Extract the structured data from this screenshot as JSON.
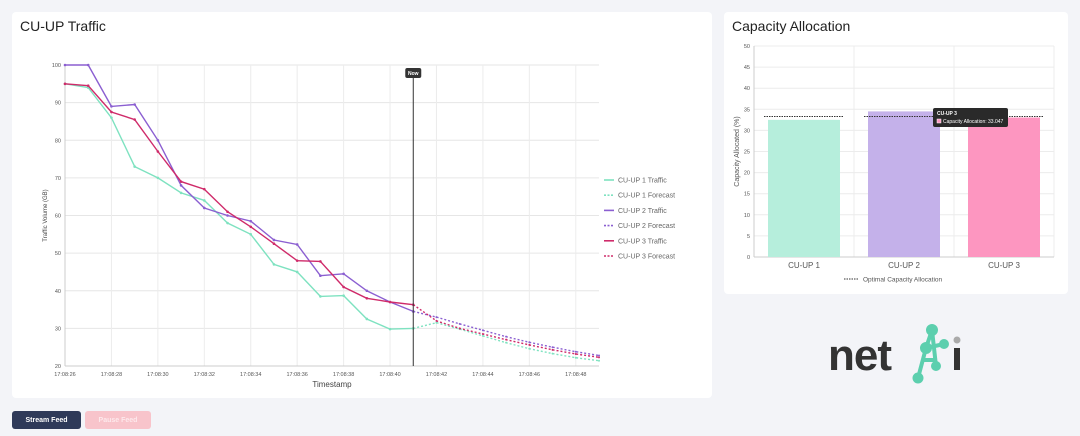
{
  "traffic": {
    "title": "CU-UP Traffic",
    "chart_data": {
      "type": "line",
      "ylabel": "Traffic Volume (GB)",
      "xlabel": "Timestamp",
      "ylim": [
        20,
        100
      ],
      "yticks": [
        20,
        30,
        40,
        50,
        60,
        70,
        80,
        90,
        100
      ],
      "x_start": "17:08:26",
      "xticks": [
        "17:08:26",
        "17:08:28",
        "17:08:30",
        "17:08:32",
        "17:08:34",
        "17:08:36",
        "17:08:38",
        "17:08:40",
        "17:08:42",
        "17:08:44",
        "17:08:46",
        "17:08:48"
      ],
      "now_marker": {
        "label": "Now",
        "x": 41
      },
      "legend_position": "right",
      "series": [
        {
          "name": "CU-UP 1 Traffic",
          "color": "#7ee2c0",
          "dashed": false,
          "points": [
            [
              26,
              95
            ],
            [
              27,
              94
            ],
            [
              28,
              86
            ],
            [
              29,
              73
            ],
            [
              30,
              70
            ],
            [
              31,
              66
            ],
            [
              32,
              64
            ],
            [
              33,
              58
            ],
            [
              34,
              55
            ],
            [
              35,
              47
            ],
            [
              36,
              45
            ],
            [
              37,
              38.5
            ],
            [
              38,
              38.7
            ],
            [
              39,
              32.5
            ],
            [
              40,
              29.8
            ],
            [
              41,
              30
            ]
          ]
        },
        {
          "name": "CU-UP 1 Forecast",
          "color": "#7ee2c0",
          "dashed": true,
          "points": [
            [
              41,
              30
            ],
            [
              42,
              31.5
            ],
            [
              43,
              29.8
            ],
            [
              44,
              28
            ],
            [
              45,
              26.2
            ],
            [
              46,
              24.6
            ],
            [
              47,
              23.3
            ],
            [
              48,
              22.2
            ],
            [
              49,
              21.4
            ]
          ]
        },
        {
          "name": "CU-UP 2 Traffic",
          "color": "#8b5fd1",
          "dashed": false,
          "points": [
            [
              26,
              100
            ],
            [
              27,
              100
            ],
            [
              28,
              89
            ],
            [
              29,
              89.5
            ],
            [
              30,
              80
            ],
            [
              31,
              68
            ],
            [
              32,
              62
            ],
            [
              33,
              60
            ],
            [
              34,
              58.5
            ],
            [
              35,
              53.5
            ],
            [
              36,
              52.3
            ],
            [
              37,
              44
            ],
            [
              38,
              44.5
            ],
            [
              39,
              40
            ],
            [
              40,
              37
            ],
            [
              41,
              34.5
            ]
          ]
        },
        {
          "name": "CU-UP 2 Forecast",
          "color": "#8b5fd1",
          "dashed": true,
          "points": [
            [
              41,
              34.5
            ],
            [
              42,
              33
            ],
            [
              43,
              31.2
            ],
            [
              44,
              29.5
            ],
            [
              45,
              27.8
            ],
            [
              46,
              26.3
            ],
            [
              47,
              25
            ],
            [
              48,
              23.8
            ],
            [
              49,
              22.8
            ]
          ]
        },
        {
          "name": "CU-UP 3 Traffic",
          "color": "#cf2b6a",
          "dashed": false,
          "points": [
            [
              26,
              95
            ],
            [
              27,
              94.5
            ],
            [
              28,
              87.5
            ],
            [
              29,
              85.5
            ],
            [
              30,
              77
            ],
            [
              31,
              69
            ],
            [
              32,
              67
            ],
            [
              33,
              61
            ],
            [
              34,
              57
            ],
            [
              35,
              52.5
            ],
            [
              36,
              48
            ],
            [
              37,
              47.8
            ],
            [
              38,
              41
            ],
            [
              39,
              38
            ],
            [
              40,
              37
            ],
            [
              41,
              36.3
            ]
          ]
        },
        {
          "name": "CU-UP 3 Forecast",
          "color": "#cf2b6a",
          "dashed": true,
          "points": [
            [
              41,
              36.3
            ],
            [
              42,
              32
            ],
            [
              43,
              30
            ],
            [
              44,
              28.5
            ],
            [
              45,
              27
            ],
            [
              46,
              25.6
            ],
            [
              47,
              24.3
            ],
            [
              48,
              23.2
            ],
            [
              49,
              22.3
            ]
          ]
        }
      ]
    }
  },
  "capacity": {
    "title": "Capacity Allocation",
    "chart_data": {
      "type": "bar",
      "ylabel": "Capacity Allocated (%)",
      "ylim": [
        0,
        50
      ],
      "yticks": [
        0,
        5,
        10,
        15,
        20,
        25,
        30,
        35,
        40,
        45,
        50
      ],
      "categories": [
        "CU-UP 1",
        "CU-UP 2",
        "CU-UP 3"
      ],
      "values": [
        32.5,
        34.5,
        33.047
      ],
      "colors": [
        "#b6eedc",
        "#c4b1ea",
        "#fd96c0"
      ],
      "optimal": [
        33.3,
        33.3,
        33.3
      ],
      "optimal_label": "Optimal Capacity Allocation",
      "tooltip": {
        "title": "CU-UP 3",
        "body": "Capacity Allocation: 33.047",
        "swatch": "#fd96c0"
      }
    }
  },
  "controls": {
    "stream_label": "Stream Feed",
    "pause_label": "Pause Feed"
  },
  "logo": {
    "text": "net",
    "accent": "#5ccfae"
  }
}
